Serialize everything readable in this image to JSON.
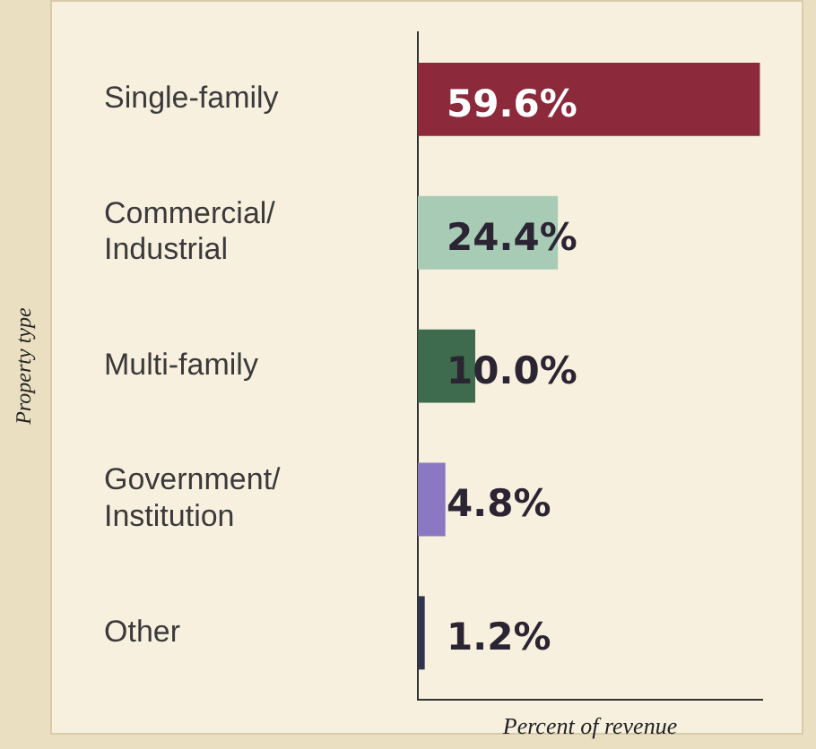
{
  "chart_data": {
    "type": "bar",
    "orientation": "horizontal",
    "ylabel": "Property type",
    "xlabel": "Percent of revenue",
    "categories": [
      "Single-family",
      "Commercial/Industrial",
      "Multi-family",
      "Government/Institution",
      "Other"
    ],
    "values": [
      59.6,
      24.4,
      10.0,
      4.8,
      1.2
    ],
    "colors": [
      "#8c2a3c",
      "#a8cbb6",
      "#3e6b4e",
      "#8a78c2",
      "#30344f"
    ],
    "value_labels": [
      "59.6%",
      "24.4%",
      "10.0%",
      "4.8%",
      "1.2%"
    ],
    "grid": false,
    "legend": false,
    "tick_labels": "y"
  }
}
